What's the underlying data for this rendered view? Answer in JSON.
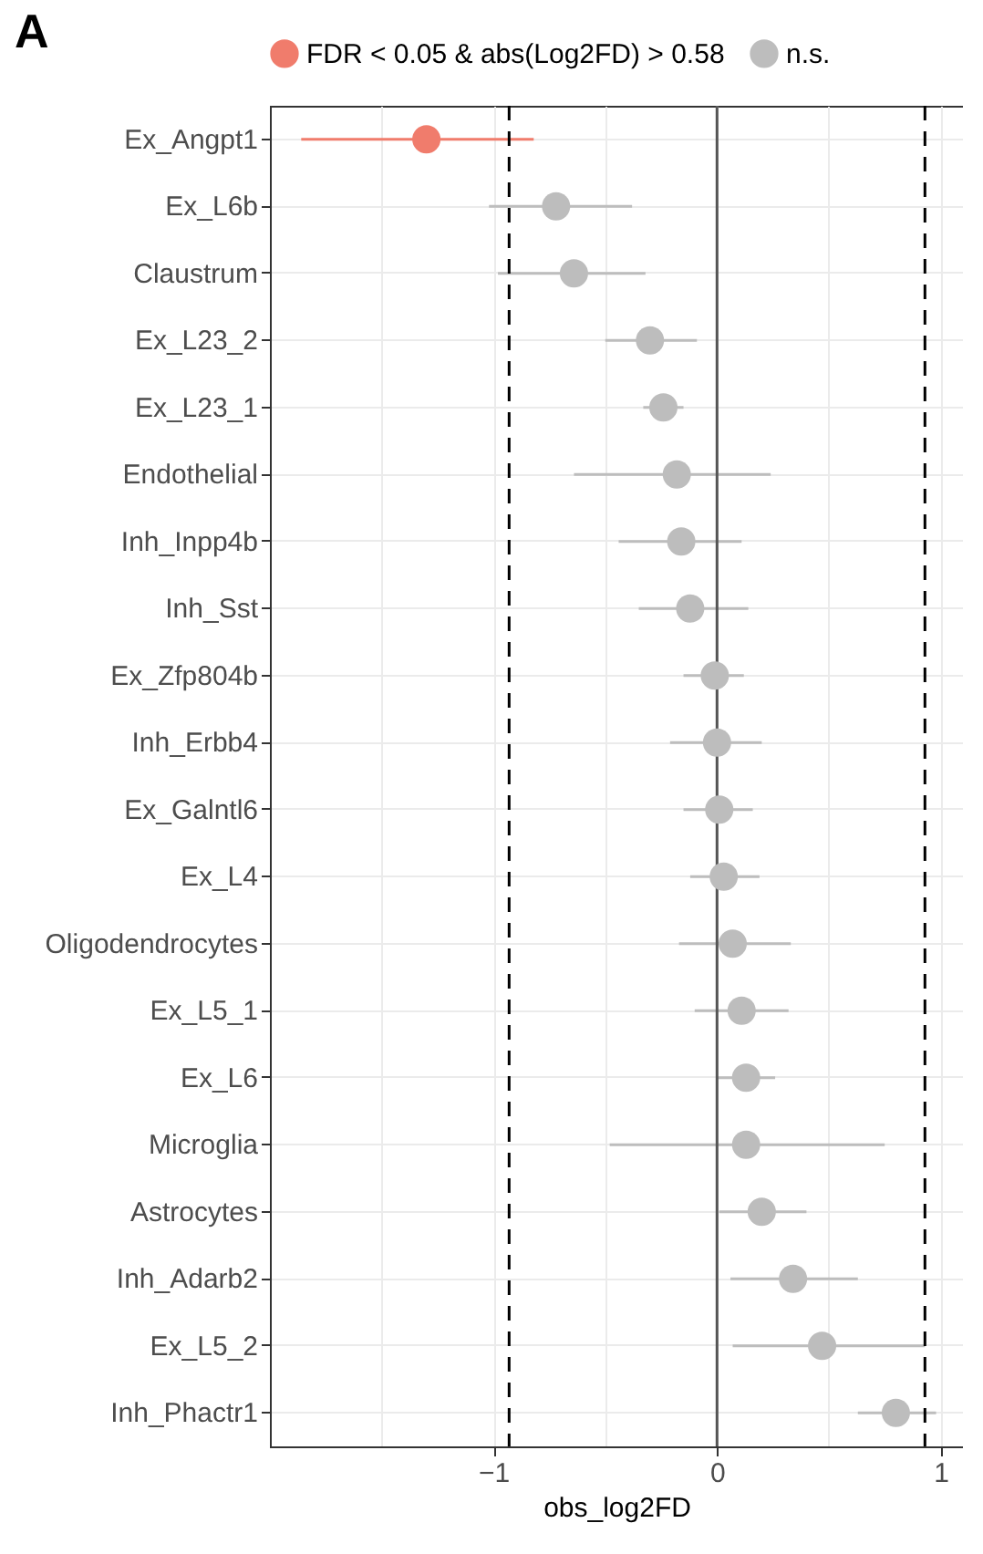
{
  "chart_data": {
    "type": "scatter",
    "title": "A",
    "xlabel": "obs_log2FD",
    "orientation": "horizontal",
    "categories": [
      "Ex_Angpt1",
      "Ex_L6b",
      "Claustrum",
      "Ex_L23_2",
      "Ex_L23_1",
      "Endothelial",
      "Inh_Inpp4b",
      "Inh_Sst",
      "Ex_Zfp804b",
      "Inh_Erbb4",
      "Ex_Galntl6",
      "Ex_L4",
      "Oligodendrocytes",
      "Ex_L5_1",
      "Ex_L6",
      "Microglia",
      "Astrocytes",
      "Inh_Adarb2",
      "Ex_L5_2",
      "Inh_Phactr1"
    ],
    "series": [
      {
        "name": "FDR < 0.05 & abs(Log2FD) > 0.58",
        "color": "#f07c6c",
        "values": [
          -1.3,
          null,
          null,
          null,
          null,
          null,
          null,
          null,
          null,
          null,
          null,
          null,
          null,
          null,
          null,
          null,
          null,
          null,
          null,
          null
        ],
        "errors": [
          [
            -1.86,
            -0.82
          ],
          null,
          null,
          null,
          null,
          null,
          null,
          null,
          null,
          null,
          null,
          null,
          null,
          null,
          null,
          null,
          null,
          null,
          null,
          null
        ]
      },
      {
        "name": "n.s.",
        "color": "#bdbdbd",
        "values": [
          null,
          -0.72,
          -0.64,
          -0.3,
          -0.24,
          -0.18,
          -0.16,
          -0.12,
          -0.01,
          0.0,
          0.01,
          0.03,
          0.07,
          0.11,
          0.13,
          0.13,
          0.2,
          0.34,
          0.47,
          0.8
        ],
        "errors": [
          null,
          [
            -1.02,
            -0.38
          ],
          [
            -0.98,
            -0.32
          ],
          [
            -0.5,
            -0.09
          ],
          [
            -0.33,
            -0.15
          ],
          [
            -0.64,
            0.24
          ],
          [
            -0.44,
            0.11
          ],
          [
            -0.35,
            0.14
          ],
          [
            -0.15,
            0.12
          ],
          [
            -0.21,
            0.2
          ],
          [
            -0.15,
            0.16
          ],
          [
            -0.12,
            0.19
          ],
          [
            -0.17,
            0.33
          ],
          [
            -0.1,
            0.32
          ],
          [
            0.0,
            0.26
          ],
          [
            -0.48,
            0.75
          ],
          [
            0.01,
            0.4
          ],
          [
            0.06,
            0.63
          ],
          [
            0.07,
            0.93
          ],
          [
            0.63,
            0.98
          ]
        ]
      }
    ],
    "xlim": [
      -2,
      1.1
    ],
    "xticks": [
      {
        "value": -1.5,
        "label": null
      },
      {
        "value": -1,
        "label": "−1"
      },
      {
        "value": -0.5,
        "label": null
      },
      0,
      {
        "value": 0.5,
        "label": null
      },
      1
    ],
    "ref_lines": [
      {
        "axis": "x",
        "value": -0.93,
        "line_style": "dashed"
      },
      {
        "axis": "x",
        "value": 0.93,
        "line_style": "dashed"
      },
      {
        "axis": "x",
        "value": 0,
        "line_style": "solid",
        "color": "#555555"
      }
    ],
    "grid": true,
    "legend": "top",
    "marker": "circle"
  }
}
